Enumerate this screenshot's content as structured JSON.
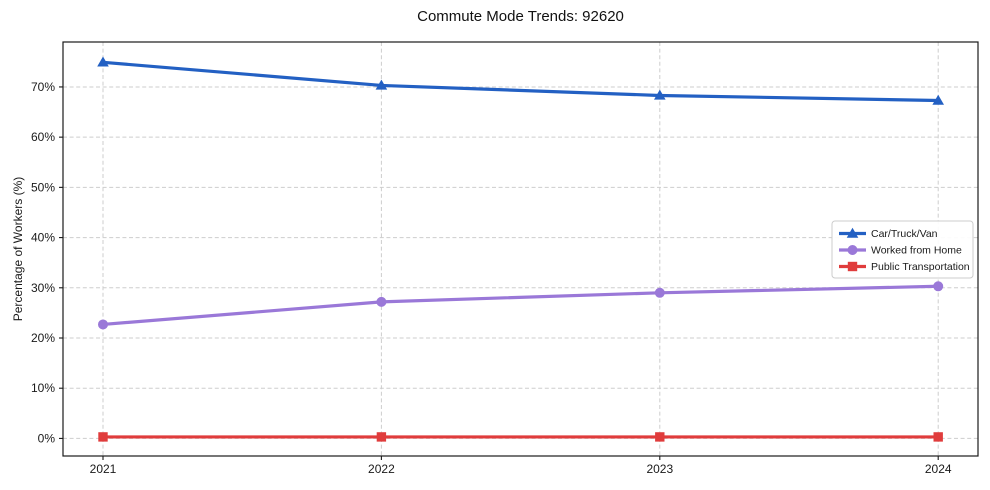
{
  "chart_data": {
    "type": "line",
    "title": "Commute Mode Trends: 92620",
    "xlabel": "",
    "ylabel": "Percentage of Workers (%)",
    "categories": [
      "2021",
      "2022",
      "2023",
      "2024"
    ],
    "series": [
      {
        "name": "Car/Truck/Van",
        "values": [
          74.9,
          70.3,
          68.3,
          67.3
        ],
        "color": "#2360c3",
        "marker": "triangle"
      },
      {
        "name": "Worked from Home",
        "values": [
          22.7,
          27.2,
          29.0,
          30.3
        ],
        "color": "#9a78d8",
        "marker": "circle"
      },
      {
        "name": "Public Transportation",
        "values": [
          0.3,
          0.3,
          0.3,
          0.3
        ],
        "color": "#e03c3c",
        "marker": "square"
      }
    ],
    "yticks": [
      0,
      10,
      20,
      30,
      40,
      50,
      60,
      70
    ],
    "ytick_suffix": "%",
    "ylim": [
      -3.5,
      78.95
    ],
    "grid": true,
    "grid_style": "dashed",
    "legend_position": "center-right",
    "text_color": "#1a1a1a",
    "grid_color": "#cdcdcd",
    "background_color": "#ffffff"
  }
}
